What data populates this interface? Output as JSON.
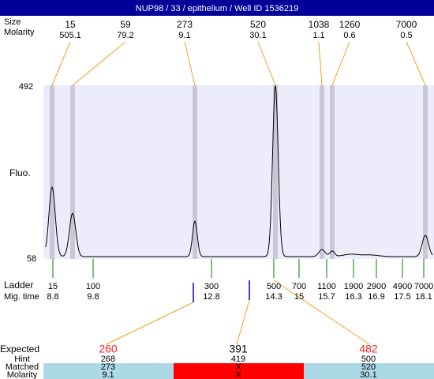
{
  "header": {
    "title": "NUP98 / 33 / epithelium  / Well ID 1536219"
  },
  "peaks": {
    "size_label": "Size",
    "molarity_label": "Molarity",
    "sizes": [
      15,
      59,
      273,
      520,
      1038,
      1260,
      7000
    ],
    "molarities": [
      505.1,
      79.2,
      9.1,
      30.1,
      1.1,
      0.6,
      0.5
    ]
  },
  "axis": {
    "label": "Fluo.",
    "max": 492,
    "min": 58
  },
  "ladder": {
    "label": "Ladder",
    "time_label": "Mig. time",
    "sizes": [
      15,
      100,
      300,
      500,
      700,
      1100,
      1900,
      2900,
      4900,
      7000
    ],
    "times": [
      8.8,
      9.8,
      12.8,
      14.3,
      15,
      15.7,
      16.3,
      16.9,
      17.5,
      18.1
    ]
  },
  "table": {
    "labels": [
      "Expected",
      "Hint",
      "Matched",
      "Molarity"
    ],
    "columns": [
      {
        "expected": 260,
        "hint": 268,
        "matched": 273,
        "molarity": 9.1
      },
      {
        "expected": 391,
        "hint": 419,
        "matched": "X",
        "molarity": "X"
      },
      {
        "expected": 482,
        "hint": 500,
        "matched": 520,
        "molarity": 30.1
      }
    ]
  }
}
